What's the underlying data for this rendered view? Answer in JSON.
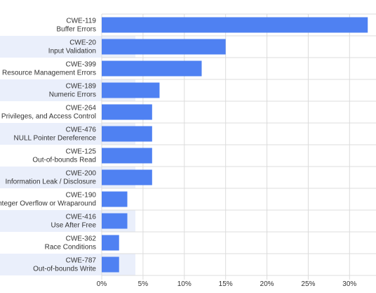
{
  "chart_data": {
    "type": "bar",
    "orientation": "horizontal",
    "title": "",
    "xlabel": "",
    "ylabel": "",
    "categories": [
      {
        "id": "CWE-119",
        "name": "Buffer Errors"
      },
      {
        "id": "CWE-20",
        "name": "Input Validation"
      },
      {
        "id": "CWE-399",
        "name": "Resource Management Errors"
      },
      {
        "id": "CWE-189",
        "name": "Numeric Errors"
      },
      {
        "id": "CWE-264",
        "name": "Permissions, Privileges, and Access Control"
      },
      {
        "id": "CWE-476",
        "name": "NULL Pointer Dereference"
      },
      {
        "id": "CWE-125",
        "name": "Out-of-bounds Read"
      },
      {
        "id": "CWE-200",
        "name": "Information Leak / Disclosure"
      },
      {
        "id": "CWE-190",
        "name": "Integer Overflow or Wraparound"
      },
      {
        "id": "CWE-416",
        "name": "Use After Free"
      },
      {
        "id": "CWE-362",
        "name": "Race Conditions"
      },
      {
        "id": "CWE-787",
        "name": "Out-of-bounds Write"
      }
    ],
    "values": [
      32.2,
      15.0,
      12.1,
      7.0,
      6.1,
      6.1,
      6.1,
      6.1,
      3.1,
      3.1,
      2.1,
      2.1
    ],
    "xlim": [
      0,
      33.2
    ],
    "xticks": [
      0,
      5,
      10,
      15,
      20,
      25,
      30
    ],
    "xtick_labels": [
      "0%",
      "5%",
      "10%",
      "15%",
      "20%",
      "25%",
      "30%"
    ],
    "grid": true,
    "legend": "none",
    "colors": {
      "bar": "#4f81f2",
      "band": "#eaeffb",
      "grid": "#dcdcdc",
      "text": "#333333"
    }
  }
}
